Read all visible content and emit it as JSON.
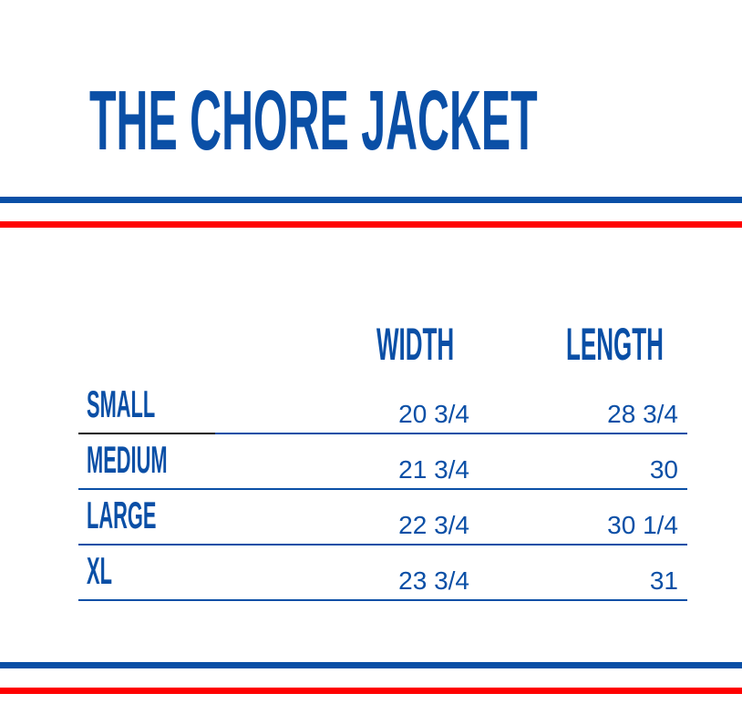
{
  "title": "THE CHORE JACKET",
  "colors": {
    "brand_blue": "#0a4fa6",
    "accent_red": "#ff0000"
  },
  "table": {
    "columns": [
      "WIDTH",
      "LENGTH"
    ],
    "rows": [
      {
        "size": "SMALL",
        "width": "20 3/4",
        "length": "28 3/4"
      },
      {
        "size": "MEDIUM",
        "width": "21 3/4",
        "length": "30"
      },
      {
        "size": "LARGE",
        "width": "22 3/4",
        "length": "30 1/4"
      },
      {
        "size": "XL",
        "width": "23 3/4",
        "length": "31"
      }
    ]
  }
}
